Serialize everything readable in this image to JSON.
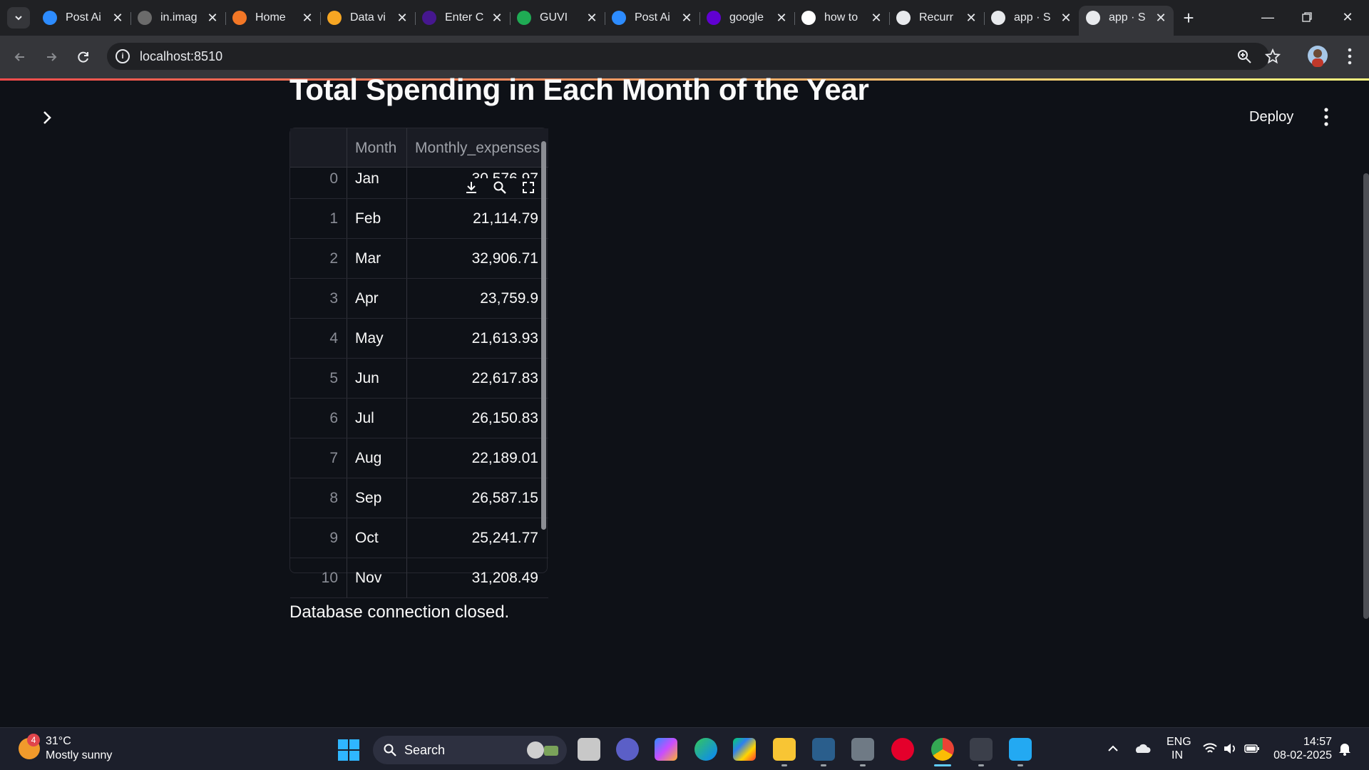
{
  "browser": {
    "tabs": [
      {
        "title": "Post Ai",
        "favicon": "zoom-icon",
        "color": "#2d8cff"
      },
      {
        "title": "in.imag",
        "favicon": "yahoo-image-icon",
        "color": "#6b6b6b"
      },
      {
        "title": "Home",
        "favicon": "jupyter-icon",
        "color": "#f37726"
      },
      {
        "title": "Data vi",
        "favicon": "book-icon",
        "color": "#f6a623"
      },
      {
        "title": "Enter C",
        "favicon": "kahoot-icon",
        "color": "#46178f"
      },
      {
        "title": "GUVI",
        "favicon": "guvi-icon",
        "color": "#1fab54"
      },
      {
        "title": "Post Ai",
        "favicon": "zoom-icon",
        "color": "#2d8cff"
      },
      {
        "title": "google",
        "favicon": "yahoo-icon",
        "color": "#6001d2"
      },
      {
        "title": "how to",
        "favicon": "google-icon",
        "color": "#ffffff"
      },
      {
        "title": "Recurr",
        "favicon": "chatgpt-icon",
        "color": "#e8eaed"
      },
      {
        "title": "app · S",
        "favicon": "streamlit-icon",
        "color": "#e8eaed"
      },
      {
        "title": "app · S",
        "favicon": "streamlit-icon",
        "color": "#e8eaed",
        "active": true
      }
    ],
    "url": "localhost:8510"
  },
  "app": {
    "deploy_label": "Deploy",
    "title": "Total Spending in Each Month of the Year",
    "table": {
      "columns": [
        "",
        "Month",
        "Monthly_expenses"
      ],
      "rows": [
        {
          "index": "0",
          "month": "Jan",
          "value": "30,576.97"
        },
        {
          "index": "1",
          "month": "Feb",
          "value": "21,114.79"
        },
        {
          "index": "2",
          "month": "Mar",
          "value": "32,906.71"
        },
        {
          "index": "3",
          "month": "Apr",
          "value": "23,759.9"
        },
        {
          "index": "4",
          "month": "May",
          "value": "21,613.93"
        },
        {
          "index": "5",
          "month": "Jun",
          "value": "22,617.83"
        },
        {
          "index": "6",
          "month": "Jul",
          "value": "26,150.83"
        },
        {
          "index": "7",
          "month": "Aug",
          "value": "22,189.01"
        },
        {
          "index": "8",
          "month": "Sep",
          "value": "26,587.15"
        },
        {
          "index": "9",
          "month": "Oct",
          "value": "25,241.77"
        },
        {
          "index": "10",
          "month": "Nov",
          "value": "31,208.49"
        }
      ]
    },
    "status_text": "Database connection closed."
  },
  "taskbar": {
    "weather_badge": "4",
    "weather_temp": "31°C",
    "weather_desc": "Mostly sunny",
    "search_label": "Search",
    "language_top": "ENG",
    "language_bottom": "IN",
    "time": "14:57",
    "date": "08-02-2025"
  }
}
